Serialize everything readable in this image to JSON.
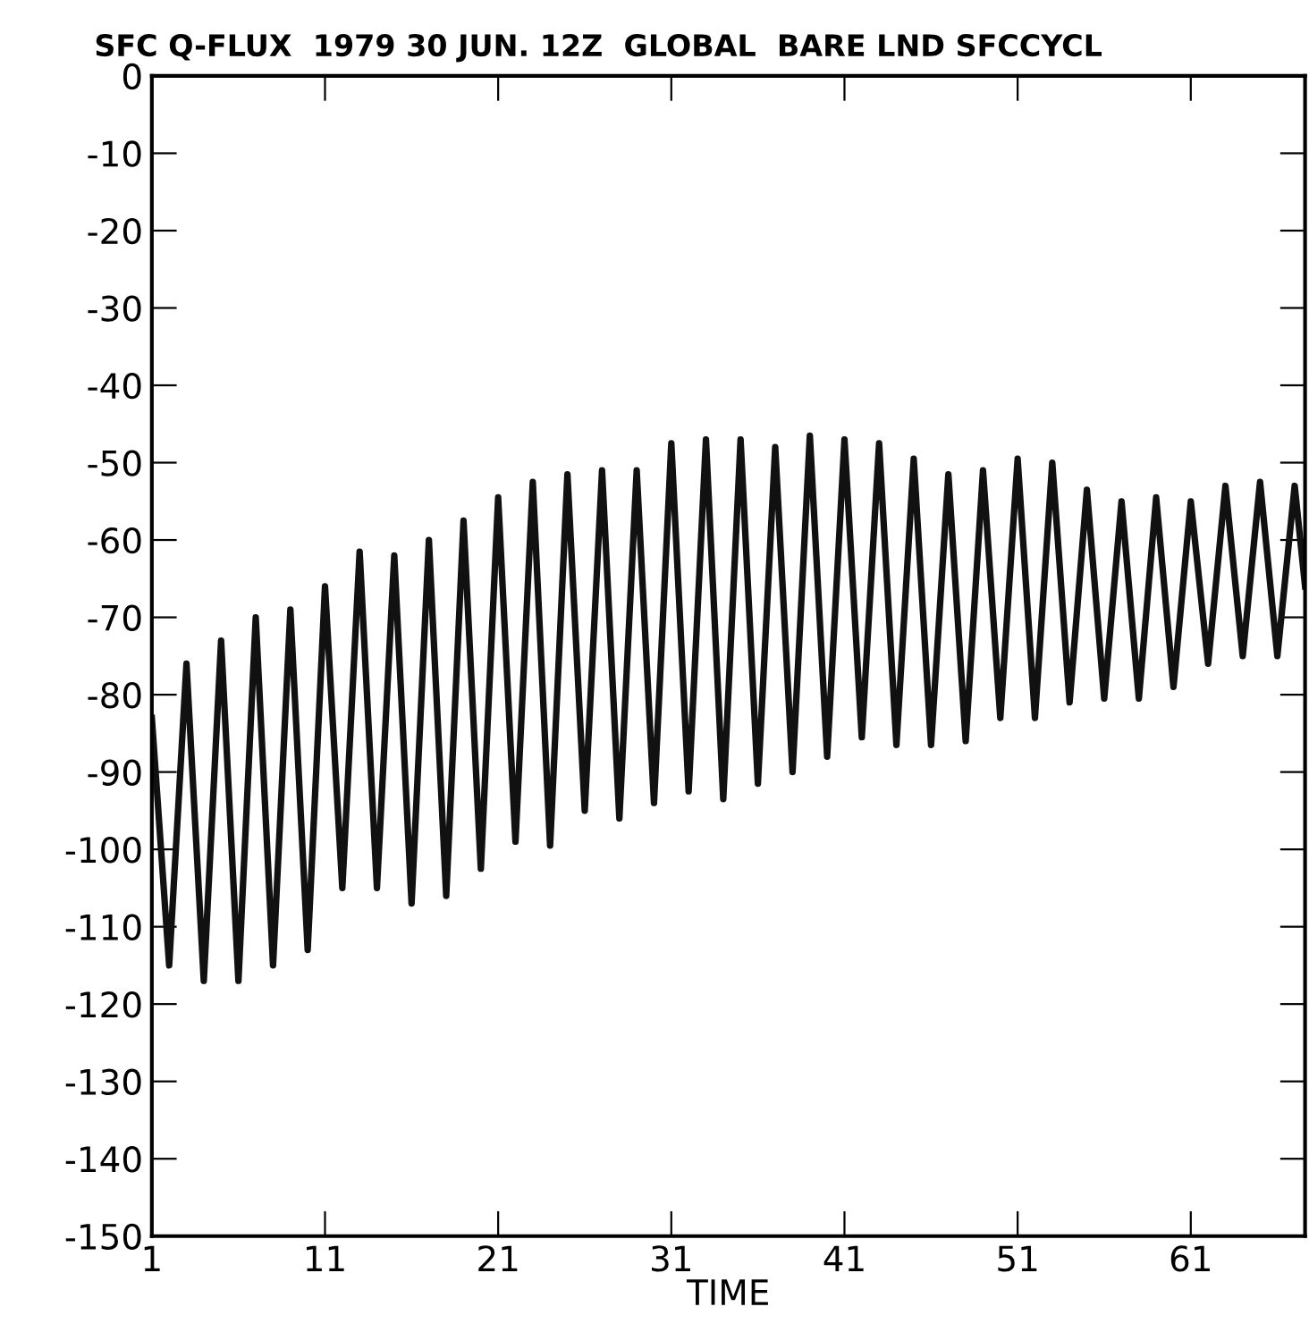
{
  "chart_data": {
    "type": "line",
    "title": "SFC Q-FLUX  1979 30 JUN. 12Z  GLOBAL  BARE LND SFCCYCL",
    "xlabel": "TIME",
    "series": [
      {
        "color": "#111111",
        "x": [
          1,
          2,
          3,
          4,
          5,
          6,
          7,
          8,
          9,
          10,
          11,
          12,
          13,
          14,
          15,
          16,
          17,
          18,
          19,
          20,
          21,
          22,
          23,
          24,
          25,
          26,
          27,
          28,
          29,
          30,
          31,
          32,
          33,
          34,
          35,
          36,
          37,
          38,
          39,
          40,
          41,
          42,
          43,
          44,
          45,
          46,
          47,
          48,
          49,
          50,
          51,
          52,
          53,
          54,
          55,
          56,
          57,
          58,
          59,
          60,
          61,
          62,
          63,
          64,
          65,
          66,
          67,
          67.6
        ],
        "values": [
          -83,
          -115,
          -76,
          -117,
          -73,
          -117,
          -70,
          -115,
          -69,
          -113,
          -66,
          -105,
          -61.5,
          -105,
          -62,
          -107,
          -60,
          -106,
          -57.5,
          -102.5,
          -54.5,
          -99,
          -52.5,
          -99.5,
          -51.5,
          -95,
          -51,
          -96,
          -51,
          -94,
          -47.5,
          -92.5,
          -47,
          -93.5,
          -47,
          -91.5,
          -48,
          -90,
          -46.5,
          -88,
          -47,
          -85.5,
          -47.5,
          -86.5,
          -49.5,
          -86.5,
          -51.5,
          -86,
          -51,
          -83,
          -49.5,
          -83,
          -50,
          -81,
          -53.5,
          -80.5,
          -55,
          -80.5,
          -54.5,
          -79,
          -55,
          -76,
          -53,
          -75,
          -52.5,
          -75,
          -53,
          -66
        ]
      }
    ],
    "xlim": [
      1,
      67.6
    ],
    "xticks": [
      1,
      11,
      21,
      31,
      41,
      51,
      61
    ],
    "ylim": [
      -150,
      0
    ],
    "yticks": [
      0,
      -10,
      -20,
      -30,
      -40,
      -50,
      -60,
      -70,
      -80,
      -90,
      -100,
      -110,
      -120,
      -130,
      -140,
      -150
    ],
    "grid": false,
    "legend": false,
    "marker": "none",
    "line_style": "solid"
  }
}
